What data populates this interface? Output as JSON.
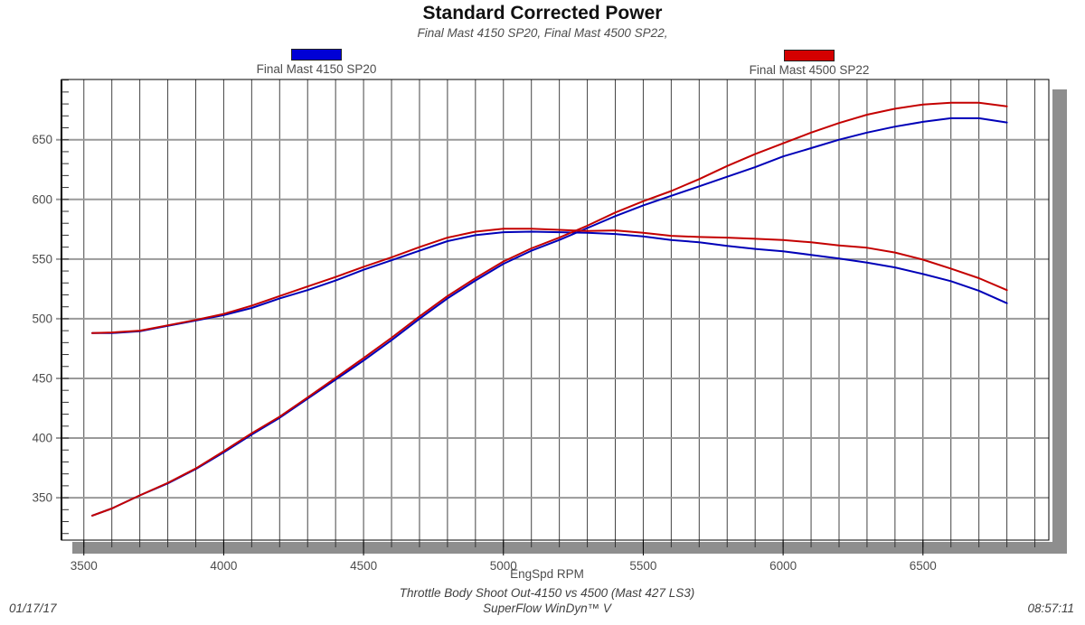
{
  "header": {
    "title": "Standard Corrected Power",
    "subtitle": "Final Mast 4150 SP20, Final Mast 4500 SP22,"
  },
  "legend": [
    {
      "label": "Final Mast 4150 SP20",
      "color": "#0000d6",
      "border": "#222222"
    },
    {
      "label": "Final Mast 4500 SP22",
      "color": "#d40000",
      "border": "#222222"
    }
  ],
  "footer": {
    "date": "01/17/17",
    "test_name": "Throttle Body Shoot Out-4150 vs 4500 (Mast 427 LS3)",
    "software": "SuperFlow WinDyn™ V",
    "time": "08:57:11"
  },
  "chart_data": {
    "type": "line",
    "title": "Standard Corrected Power",
    "subtitle": "Final Mast 4150 SP20, Final Mast 4500 SP22,",
    "xlabel": "EngSpd RPM",
    "ylabel": "",
    "xlim": [
      3420,
      6950
    ],
    "ylim": [
      314.5,
      700.5
    ],
    "x_major_ticks": [
      3500,
      4000,
      4500,
      5000,
      5500,
      6000,
      6500
    ],
    "x_minor_step": 100,
    "y_major_ticks": [
      350,
      400,
      450,
      500,
      550,
      600,
      650
    ],
    "y_minor_step": 10,
    "grid": {
      "vertical_every": 100,
      "horizontal_every": 50
    },
    "legend_position": "top",
    "colors": {
      "blue_line": "#0000b8",
      "red_line": "#c40000",
      "v_grid": "#444444",
      "h_grid": "#999999",
      "axis": "#000000",
      "shadow": "#8e8e8e",
      "tick_text": "#4d4d4d"
    },
    "x": [
      3530,
      3600,
      3700,
      3800,
      3900,
      4000,
      4100,
      4200,
      4300,
      4400,
      4500,
      4600,
      4700,
      4800,
      4900,
      5000,
      5100,
      5200,
      5300,
      5400,
      5500,
      5600,
      5700,
      5800,
      5900,
      6000,
      6100,
      6200,
      6300,
      6400,
      6500,
      6600,
      6700,
      6800
    ],
    "series": [
      {
        "name": "Final Mast 4150 SP20 Power",
        "color": "#0000b8",
        "values": [
          335,
          341,
          352,
          362,
          374,
          388,
          403,
          417,
          433,
          449,
          465,
          482,
          500,
          517,
          532,
          546,
          557,
          566,
          576,
          586,
          595,
          603,
          611,
          619,
          627,
          636,
          643,
          650,
          656,
          661,
          665,
          668,
          668,
          664.5
        ]
      },
      {
        "name": "Final Mast 4500 SP22 Power",
        "color": "#c40000",
        "values": [
          335,
          341,
          352,
          362.5,
          374.5,
          389,
          404,
          418,
          434,
          450.5,
          467,
          484,
          502,
          519,
          534,
          548,
          559,
          568,
          578,
          589,
          598.5,
          607,
          617,
          628,
          638,
          647,
          656,
          664,
          671,
          676,
          679.5,
          681,
          681,
          678
        ]
      },
      {
        "name": "Final Mast 4150 SP20 Torque",
        "color": "#0000b8",
        "values": [
          488,
          488,
          489.5,
          494,
          498.5,
          503,
          509,
          517,
          524,
          532,
          541,
          549,
          557,
          565,
          570,
          572.5,
          573,
          572.5,
          572,
          571,
          569,
          566,
          564,
          561,
          558.5,
          556.5,
          553.5,
          550.5,
          547,
          543,
          537.5,
          531.5,
          523.5,
          513
        ]
      },
      {
        "name": "Final Mast 4500 SP22 Torque",
        "color": "#c40000",
        "values": [
          488,
          488.5,
          490,
          494.5,
          499,
          504,
          511,
          519,
          527,
          535,
          543.5,
          551.5,
          560,
          568,
          573,
          575.5,
          575.5,
          574.5,
          573.5,
          574,
          572,
          569.5,
          568.5,
          568,
          567,
          566,
          564,
          561.5,
          559.5,
          555.5,
          549.5,
          542,
          534,
          524
        ]
      }
    ]
  }
}
